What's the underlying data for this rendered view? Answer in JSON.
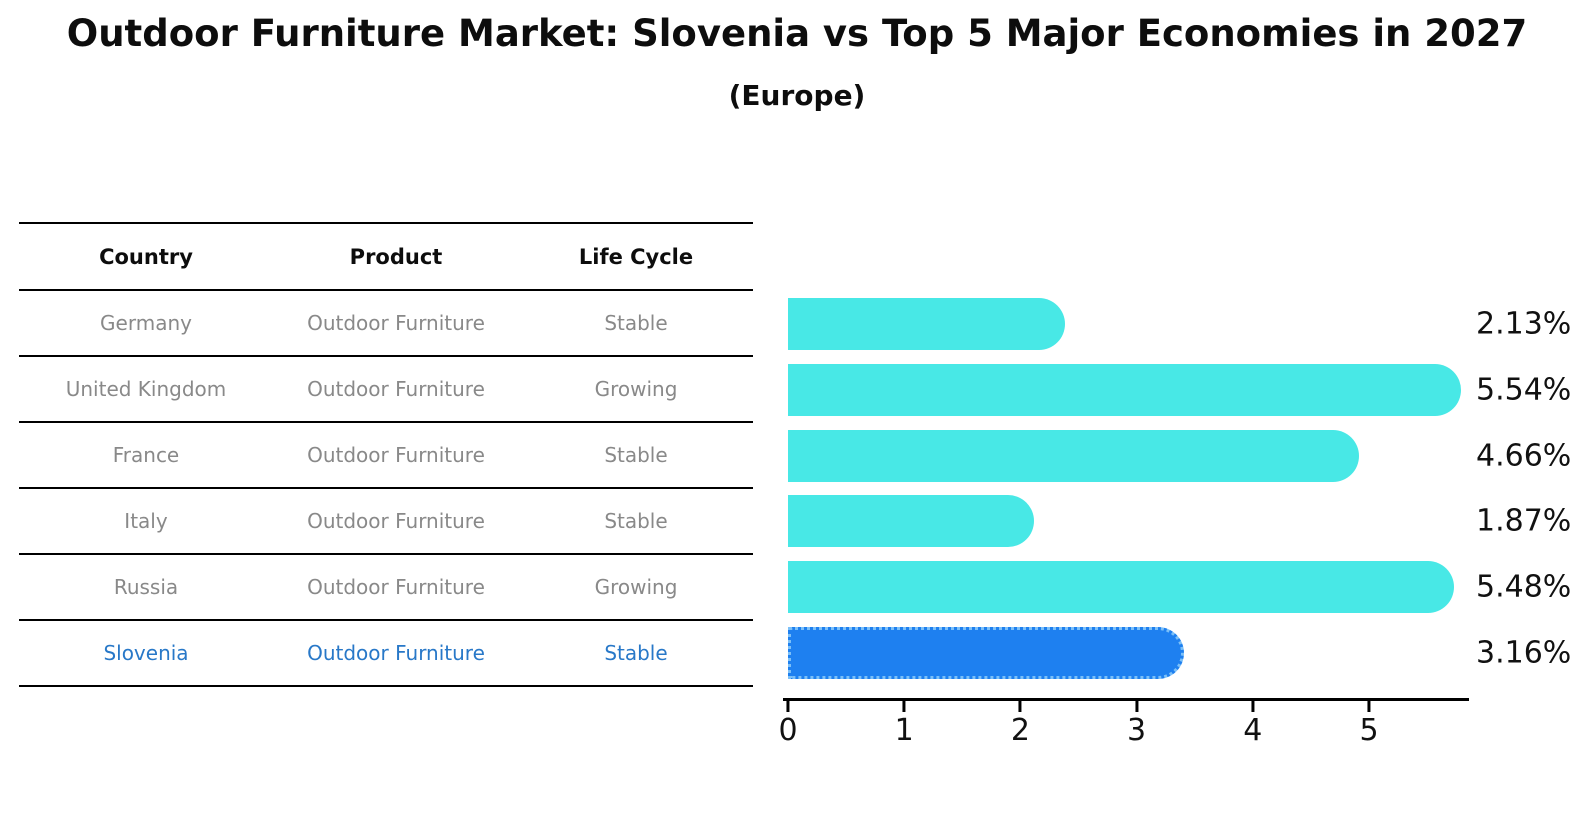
{
  "title": "Outdoor Furniture Market: Slovenia vs Top 5 Major Economies in 2027",
  "subtitle": "(Europe)",
  "table": {
    "headers": [
      "Country",
      "Product",
      "Life Cycle"
    ],
    "rows": [
      {
        "country": "Germany",
        "product": "Outdoor Furniture",
        "life_cycle": "Stable",
        "highlight": false
      },
      {
        "country": "United Kingdom",
        "product": "Outdoor Furniture",
        "life_cycle": "Growing",
        "highlight": false
      },
      {
        "country": "France",
        "product": "Outdoor Furniture",
        "life_cycle": "Stable",
        "highlight": false
      },
      {
        "country": "Italy",
        "product": "Outdoor Furniture",
        "life_cycle": "Stable",
        "highlight": false
      },
      {
        "country": "Russia",
        "product": "Outdoor Furniture",
        "life_cycle": "Growing",
        "highlight": false
      },
      {
        "country": "Slovenia",
        "product": "Outdoor Furniture",
        "life_cycle": "Stable",
        "highlight": true
      }
    ]
  },
  "chart_data": {
    "type": "bar",
    "orientation": "horizontal",
    "title": "Outdoor Furniture Market: Slovenia vs Top 5 Major Economies in 2027 (Europe)",
    "categories": [
      "Germany",
      "United Kingdom",
      "France",
      "Italy",
      "Russia",
      "Slovenia"
    ],
    "values": [
      2.13,
      5.54,
      4.66,
      1.87,
      5.48,
      3.16
    ],
    "display_values": [
      "2.13%",
      "5.54%",
      "4.66%",
      "1.87%",
      "5.48%",
      "3.16%"
    ],
    "x_ticks": [
      0,
      1,
      2,
      3,
      4,
      5
    ],
    "xlim": [
      0,
      5.86
    ],
    "grid": false,
    "legend_position": "none",
    "bar_color": "#48e8e6",
    "highlight_color": "#1e80f0",
    "highlight_text_color": "#2878c8",
    "highlight_index": 5
  }
}
